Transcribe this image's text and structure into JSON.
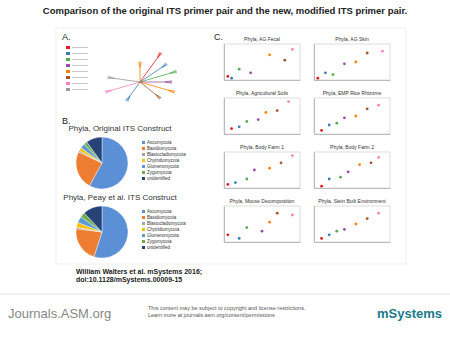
{
  "header": {
    "title": "Comparison of the original ITS primer pair and the new, modified ITS primer pair."
  },
  "panel_labels": [
    "A.",
    "B.",
    "C."
  ],
  "citation": [
    "William Walters et al. mSystems 2016;",
    "doi:10.1128/mSystems.00009-15"
  ],
  "footer": {
    "journal": "Journals.ASM.org",
    "notice": [
      "This content may be subject to copyright and license restrictions.",
      "Learn more at journals.asm.org/content/permissions"
    ],
    "logo": "mSystems"
  },
  "chart_data": [
    {
      "type": "pie",
      "title": "Phyla, Original ITS Construct",
      "categories": [
        "Ascomycota",
        "Basidiomycota",
        "Blastocladiomycota",
        "Chytridiomycota",
        "Glomeromycota",
        "Zygomycota",
        "unidentified"
      ],
      "values": [
        58,
        24,
        1,
        2,
        3,
        2,
        10
      ],
      "colors": [
        "#5b8fd6",
        "#ed7d31",
        "#a5a5a5",
        "#ffc000",
        "#5b9bd5",
        "#70ad47",
        "#264478"
      ],
      "legend": "right"
    },
    {
      "type": "pie",
      "title": "Phyla, Peay et al. ITS Construct",
      "categories": [
        "Ascomycota",
        "Basidiomycota",
        "Blastocladiomycota",
        "Chytridiomycota",
        "Glomeromycota",
        "Zygomycota",
        "unidentified"
      ],
      "values": [
        55,
        22,
        1,
        3,
        4,
        3,
        12
      ],
      "colors": [
        "#5b8fd6",
        "#ed7d31",
        "#a5a5a5",
        "#ffc000",
        "#5b9bd5",
        "#70ad47",
        "#264478"
      ],
      "legend": "right"
    },
    {
      "type": "scatter",
      "title": "Phyla, AG Fecal",
      "x": [
        0.05,
        0.1,
        0.2,
        0.35,
        0.6,
        0.8,
        0.9
      ],
      "values": [
        0.1,
        0.05,
        0.3,
        0.2,
        0.7,
        0.55,
        0.85
      ],
      "colors": [
        "#e41a1c",
        "#377eb8",
        "#4daf4a",
        "#984ea3",
        "#ff7f00",
        "#a65628",
        "#f781bf"
      ],
      "xlim": [
        0,
        1
      ],
      "ylim": [
        0,
        1
      ],
      "tick_labels": false
    },
    {
      "type": "scatter",
      "title": "Phyla, AG Skin",
      "x": [
        0.05,
        0.15,
        0.25,
        0.4,
        0.55,
        0.7,
        0.9
      ],
      "values": [
        0.05,
        0.2,
        0.15,
        0.45,
        0.5,
        0.75,
        0.8
      ],
      "colors": [
        "#e41a1c",
        "#377eb8",
        "#4daf4a",
        "#984ea3",
        "#ff7f00",
        "#a65628",
        "#f781bf"
      ],
      "xlim": [
        0,
        1
      ],
      "ylim": [
        0,
        1
      ],
      "tick_labels": false
    },
    {
      "type": "scatter",
      "title": "Phyla, Agricultural Soils",
      "x": [
        0.1,
        0.2,
        0.3,
        0.45,
        0.55,
        0.7,
        0.85
      ],
      "values": [
        0.15,
        0.2,
        0.35,
        0.4,
        0.6,
        0.65,
        0.9
      ],
      "colors": [
        "#e41a1c",
        "#377eb8",
        "#4daf4a",
        "#984ea3",
        "#ff7f00",
        "#a65628",
        "#f781bf"
      ],
      "xlim": [
        0,
        1
      ],
      "ylim": [
        0,
        1
      ],
      "tick_labels": false
    },
    {
      "type": "scatter",
      "title": "Phyla, EMP Rice Rhizome",
      "x": [
        0.1,
        0.2,
        0.3,
        0.4,
        0.55,
        0.7,
        0.85
      ],
      "values": [
        0.1,
        0.25,
        0.3,
        0.45,
        0.5,
        0.7,
        0.8
      ],
      "colors": [
        "#e41a1c",
        "#377eb8",
        "#4daf4a",
        "#984ea3",
        "#ff7f00",
        "#a65628",
        "#f781bf"
      ],
      "xlim": [
        0,
        1
      ],
      "ylim": [
        0,
        1
      ],
      "tick_labels": false
    },
    {
      "type": "scatter",
      "title": "Phyla, Body Farm 1",
      "x": [
        0.05,
        0.15,
        0.3,
        0.4,
        0.6,
        0.75,
        0.9
      ],
      "values": [
        0.1,
        0.15,
        0.25,
        0.5,
        0.55,
        0.7,
        0.9
      ],
      "colors": [
        "#e41a1c",
        "#377eb8",
        "#4daf4a",
        "#984ea3",
        "#ff7f00",
        "#a65628",
        "#f781bf"
      ],
      "xlim": [
        0,
        1
      ],
      "ylim": [
        0,
        1
      ],
      "tick_labels": false
    },
    {
      "type": "scatter",
      "title": "Phyla, Body Farm 2",
      "x": [
        0.1,
        0.2,
        0.35,
        0.45,
        0.6,
        0.75,
        0.85
      ],
      "values": [
        0.05,
        0.25,
        0.3,
        0.45,
        0.65,
        0.7,
        0.85
      ],
      "colors": [
        "#e41a1c",
        "#377eb8",
        "#4daf4a",
        "#984ea3",
        "#ff7f00",
        "#a65628",
        "#f781bf"
      ],
      "xlim": [
        0,
        1
      ],
      "ylim": [
        0,
        1
      ],
      "tick_labels": false
    },
    {
      "type": "scatter",
      "title": "Phyla, Mouse Decomposition",
      "x": [
        0.05,
        0.2,
        0.3,
        0.5,
        0.6,
        0.7,
        0.9
      ],
      "values": [
        0.2,
        0.1,
        0.4,
        0.3,
        0.55,
        0.8,
        0.75
      ],
      "colors": [
        "#e41a1c",
        "#377eb8",
        "#4daf4a",
        "#984ea3",
        "#ff7f00",
        "#a65628",
        "#f781bf"
      ],
      "xlim": [
        0,
        1
      ],
      "ylim": [
        0,
        1
      ],
      "tick_labels": false
    },
    {
      "type": "scatter",
      "title": "Phyla, Stein Built Environment",
      "x": [
        0.1,
        0.2,
        0.3,
        0.4,
        0.55,
        0.7,
        0.85
      ],
      "values": [
        0.1,
        0.2,
        0.3,
        0.35,
        0.5,
        0.65,
        0.8
      ],
      "colors": [
        "#e41a1c",
        "#377eb8",
        "#4daf4a",
        "#984ea3",
        "#ff7f00",
        "#a65628",
        "#f781bf"
      ],
      "xlim": [
        0,
        1
      ],
      "ylim": [
        0,
        1
      ],
      "tick_labels": false
    }
  ]
}
